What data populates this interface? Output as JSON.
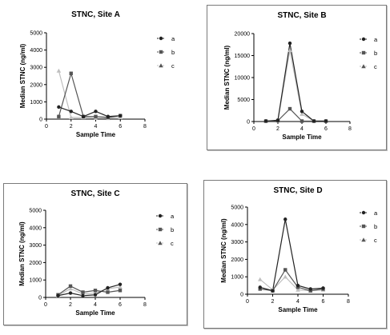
{
  "chart_data": [
    {
      "type": "line",
      "title": "STNC, Site A",
      "xlabel": "Sample Time",
      "ylabel": "Median STNC (ng/ml)",
      "xlim": [
        0,
        8
      ],
      "ylim": [
        0,
        5000
      ],
      "xticks": [
        0,
        2,
        4,
        6,
        8
      ],
      "yticks": [
        0,
        1000,
        2000,
        3000,
        4000,
        5000
      ],
      "x": [
        1,
        2,
        3,
        4,
        5,
        6
      ],
      "legend_placement": "top-right",
      "series": [
        {
          "name": "a",
          "marker": "circle",
          "color": "#222222",
          "values": [
            700,
            450,
            150,
            450,
            150,
            200
          ]
        },
        {
          "name": "b",
          "marker": "square",
          "color": "#555555",
          "values": [
            150,
            2650,
            150,
            150,
            100,
            200
          ]
        },
        {
          "name": "c",
          "marker": "triangle",
          "color": "#bfbfbf",
          "values": [
            2800,
            100,
            100,
            50,
            50,
            100
          ]
        }
      ]
    },
    {
      "type": "line",
      "title": "STNC, Site B",
      "xlabel": "Sample Time",
      "ylabel": "Median STNC (ng/ml)",
      "xlim": [
        0,
        8
      ],
      "ylim": [
        0,
        20000
      ],
      "xticks": [
        0,
        2,
        4,
        6,
        8
      ],
      "yticks": [
        0,
        5000,
        10000,
        15000,
        20000
      ],
      "x": [
        1,
        2,
        3,
        4,
        5,
        6
      ],
      "legend_placement": "top-right",
      "series": [
        {
          "name": "a",
          "marker": "circle",
          "color": "#222222",
          "values": [
            100,
            300,
            17800,
            2300,
            100,
            100
          ]
        },
        {
          "name": "b",
          "marker": "square",
          "color": "#555555",
          "values": [
            100,
            200,
            2900,
            100,
            100,
            100
          ]
        },
        {
          "name": "c",
          "marker": "triangle",
          "color": "#bfbfbf",
          "values": [
            100,
            200,
            16200,
            1700,
            100,
            100
          ]
        }
      ]
    },
    {
      "type": "line",
      "title": "STNC, Site C",
      "xlabel": "Sample Time",
      "ylabel": "Median STNC (ng/ml)",
      "xlim": [
        0,
        8
      ],
      "ylim": [
        0,
        5000
      ],
      "xticks": [
        0,
        2,
        4,
        6,
        8
      ],
      "yticks": [
        0,
        1000,
        2000,
        3000,
        4000,
        5000
      ],
      "x": [
        1,
        2,
        3,
        4,
        5,
        6
      ],
      "legend_placement": "top-right",
      "series": [
        {
          "name": "a",
          "marker": "circle",
          "color": "#222222",
          "values": [
            100,
            250,
            100,
            150,
            550,
            750
          ]
        },
        {
          "name": "b",
          "marker": "square",
          "color": "#555555",
          "values": [
            150,
            650,
            300,
            400,
            300,
            400
          ]
        },
        {
          "name": "c",
          "marker": "triangle",
          "color": "#bfbfbf",
          "values": [
            100,
            500,
            200,
            250,
            500,
            600
          ]
        }
      ]
    },
    {
      "type": "line",
      "title": "STNC, Site D",
      "xlabel": "Sample Time",
      "ylabel": "Median STNC (ng/ml)",
      "xlim": [
        0,
        8
      ],
      "ylim": [
        0,
        5000
      ],
      "xticks": [
        0,
        2,
        4,
        6,
        8
      ],
      "yticks": [
        0,
        1000,
        2000,
        3000,
        4000,
        5000
      ],
      "x": [
        1,
        2,
        3,
        4,
        5,
        6
      ],
      "legend_placement": "top-right",
      "series": [
        {
          "name": "a",
          "marker": "circle",
          "color": "#222222",
          "values": [
            400,
            200,
            4300,
            500,
            300,
            350
          ]
        },
        {
          "name": "b",
          "marker": "square",
          "color": "#555555",
          "values": [
            300,
            200,
            1400,
            400,
            200,
            300
          ]
        },
        {
          "name": "c",
          "marker": "triangle",
          "color": "#bfbfbf",
          "values": [
            850,
            250,
            1000,
            250,
            200,
            250
          ]
        }
      ]
    }
  ]
}
